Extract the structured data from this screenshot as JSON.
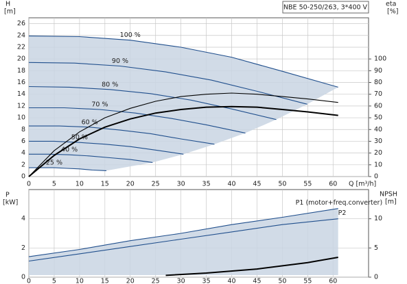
{
  "chart_data": [
    {
      "type": "line",
      "title": "NBE 50-250/263, 3*400 V",
      "y_label": "H",
      "y_unit": "[m]",
      "y2_label": "eta",
      "y2_unit": "[%]",
      "x_label": "Q [m³/h]",
      "xlim": [
        0,
        67
      ],
      "xticks": [
        0,
        5,
        10,
        15,
        20,
        25,
        30,
        35,
        40,
        45,
        50,
        55,
        60
      ],
      "ylim": [
        0,
        27
      ],
      "yticks": [
        0,
        2,
        4,
        6,
        8,
        10,
        12,
        14,
        16,
        18,
        20,
        22,
        24,
        26
      ],
      "y2lim": [
        0,
        135
      ],
      "y2ticks": [
        0,
        10,
        20,
        30,
        40,
        50,
        60,
        70,
        80,
        90,
        100
      ],
      "grid": true,
      "series": [
        {
          "name": "100 %",
          "color": "#1f4e8c",
          "x": [
            0,
            10,
            20,
            30,
            40,
            50,
            61
          ],
          "values": [
            23.9,
            23.8,
            23.2,
            22.0,
            20.3,
            17.9,
            15.2
          ]
        },
        {
          "name": "90 %",
          "color": "#1f4e8c",
          "x": [
            0,
            9,
            18,
            27,
            36,
            45,
            54.9
          ],
          "values": [
            19.4,
            19.3,
            18.8,
            17.8,
            16.4,
            14.5,
            12.3
          ]
        },
        {
          "name": "80 %",
          "color": "#1f4e8c",
          "x": [
            0,
            8,
            16,
            24,
            32,
            40,
            48.8
          ],
          "values": [
            15.3,
            15.2,
            14.8,
            14.1,
            13.0,
            11.5,
            9.7
          ]
        },
        {
          "name": "70 %",
          "color": "#1f4e8c",
          "x": [
            0,
            7,
            14,
            21,
            28,
            35,
            42.7
          ],
          "values": [
            11.7,
            11.7,
            11.4,
            10.8,
            9.9,
            8.8,
            7.4
          ]
        },
        {
          "name": "60 %",
          "color": "#1f4e8c",
          "x": [
            0,
            6,
            12,
            18,
            24,
            30,
            36.6
          ],
          "values": [
            8.6,
            8.6,
            8.4,
            7.9,
            7.3,
            6.4,
            5.5
          ]
        },
        {
          "name": "50 %",
          "color": "#1f4e8c",
          "x": [
            0,
            5,
            10,
            15,
            20,
            25,
            30.5
          ],
          "values": [
            6.0,
            6.0,
            5.8,
            5.5,
            5.1,
            4.5,
            3.8
          ]
        },
        {
          "name": "40 %",
          "color": "#1f4e8c",
          "x": [
            0,
            4,
            8,
            12,
            16,
            20,
            24.4
          ],
          "values": [
            3.8,
            3.8,
            3.7,
            3.5,
            3.2,
            2.9,
            2.4
          ]
        },
        {
          "name": "25 %",
          "color": "#1f4e8c",
          "x": [
            0,
            2.5,
            5,
            7.5,
            10,
            12.5,
            15.3
          ],
          "values": [
            1.5,
            1.5,
            1.5,
            1.4,
            1.3,
            1.1,
            1.0
          ]
        },
        {
          "axis": "y2",
          "color": "#000000",
          "x": [
            0,
            5,
            10,
            15,
            20,
            25,
            30,
            35,
            40,
            45,
            50,
            55,
            61
          ],
          "values": [
            0,
            22,
            38,
            50,
            58,
            64,
            68,
            70,
            71,
            70,
            68,
            66,
            63
          ]
        },
        {
          "axis": "y2",
          "color": "#000000",
          "thick": true,
          "x": [
            0,
            5,
            10,
            15,
            20,
            25,
            30,
            35,
            40,
            45,
            50,
            55,
            61
          ],
          "values": [
            0,
            18,
            32,
            42,
            49,
            54,
            57,
            59,
            59.5,
            59,
            57,
            55,
            52
          ]
        }
      ]
    },
    {
      "type": "line",
      "y_label": "P",
      "y_unit": "[kW]",
      "y2_label": "NPSH",
      "y2_unit": "[m]",
      "xlim": [
        0,
        67
      ],
      "xticks": [
        0,
        5,
        10,
        15,
        20,
        25,
        30,
        35,
        40,
        45,
        50,
        55,
        60
      ],
      "ylim": [
        0,
        6
      ],
      "yticks": [
        0,
        2,
        4
      ],
      "y2lim": [
        0,
        15
      ],
      "y2ticks": [
        0,
        5,
        10
      ],
      "grid": true,
      "series": [
        {
          "name": "P1 (motor+freq.converter)",
          "color": "#1f4e8c",
          "x": [
            0,
            10,
            20,
            30,
            40,
            50,
            61
          ],
          "values": [
            1.4,
            1.9,
            2.5,
            3.0,
            3.6,
            4.1,
            4.7
          ]
        },
        {
          "name": "P2",
          "color": "#1f4e8c",
          "x": [
            0,
            10,
            20,
            30,
            40,
            50,
            61
          ],
          "values": [
            1.1,
            1.6,
            2.1,
            2.6,
            3.1,
            3.6,
            4.0
          ]
        },
        {
          "axis": "y2",
          "color": "#000000",
          "thick": true,
          "x": [
            27,
            35,
            45,
            55,
            61
          ],
          "values": [
            0.3,
            0.7,
            1.4,
            2.5,
            3.4
          ]
        }
      ]
    }
  ]
}
